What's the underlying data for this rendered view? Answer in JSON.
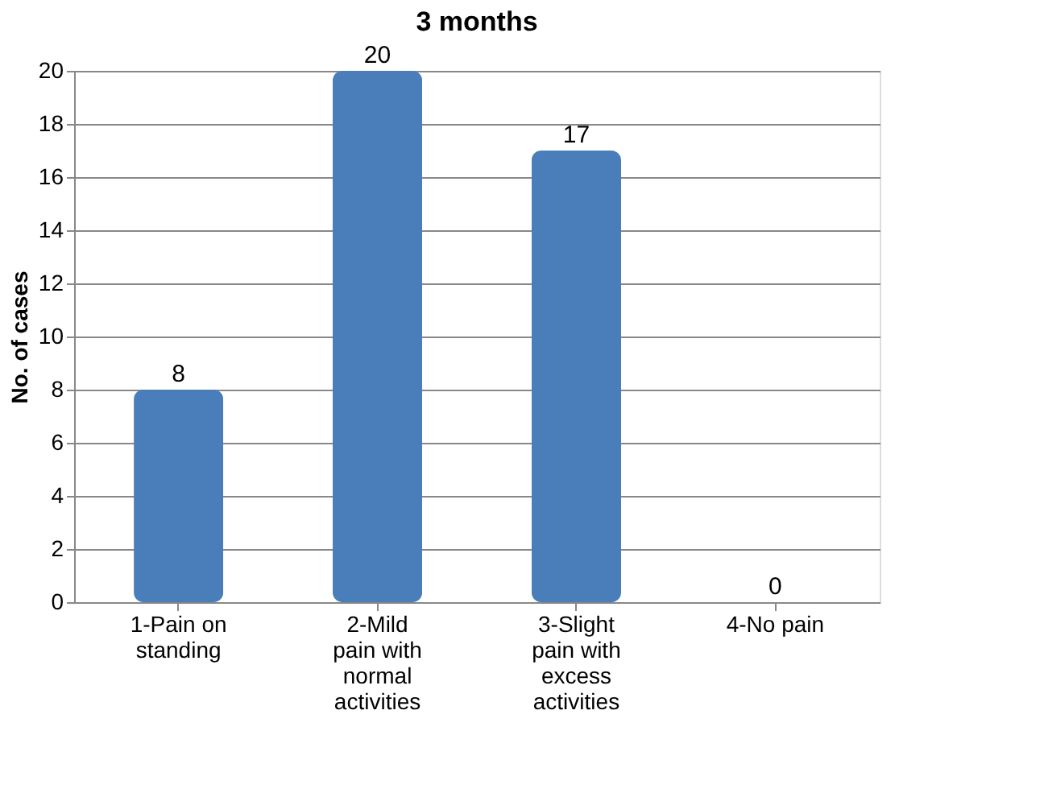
{
  "chart_data": {
    "type": "bar",
    "title": "3 months",
    "ylabel": "No. of cases",
    "categories": [
      "1-Pain on standing",
      "2-Mild pain with normal activities",
      "3-Slight pain with excess activities",
      "4-No pain"
    ],
    "values": [
      8,
      20,
      17,
      0
    ],
    "color": "#4a7ebb",
    "ylim": [
      0,
      20
    ],
    "yticks": [
      0,
      2,
      4,
      6,
      8,
      10,
      12,
      14,
      16,
      18,
      20
    ],
    "grid": "y",
    "data_labels": true
  }
}
